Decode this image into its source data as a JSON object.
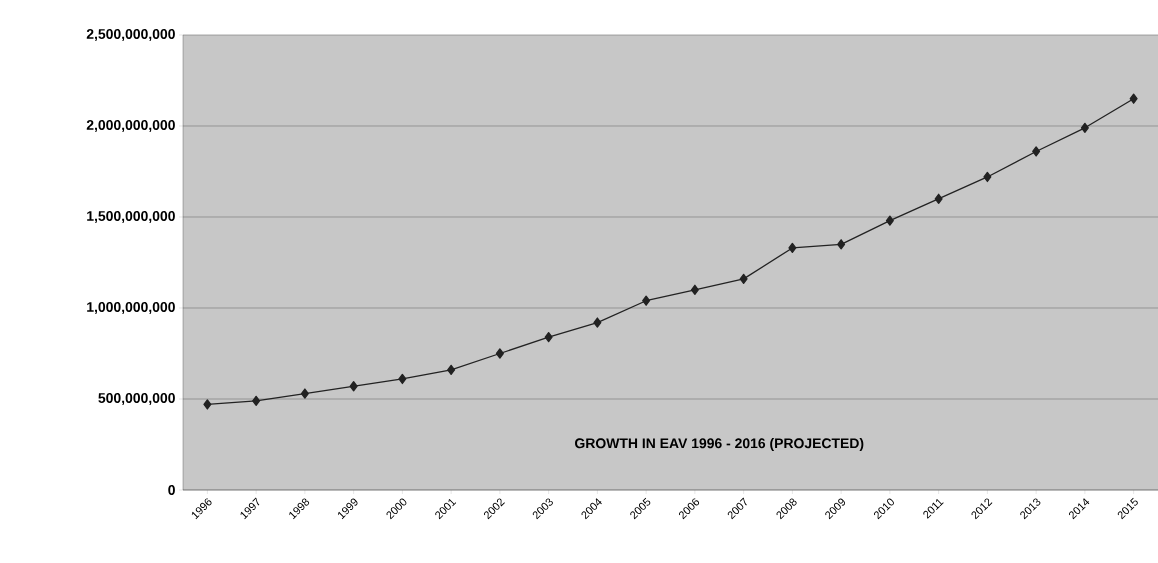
{
  "chart_data": {
    "type": "line",
    "categories": [
      "1996",
      "1997",
      "1998",
      "1999",
      "2000",
      "2001",
      "2002",
      "2003",
      "2004",
      "2005",
      "2006",
      "2007",
      "2008",
      "2009",
      "2010",
      "2011",
      "2012",
      "2013",
      "2014",
      "2015"
    ],
    "values": [
      470000000,
      490000000,
      530000000,
      570000000,
      610000000,
      660000000,
      750000000,
      840000000,
      920000000,
      1040000000,
      1100000000,
      1160000000,
      1330000000,
      1350000000,
      1480000000,
      1600000000,
      1720000000,
      1860000000,
      1990000000,
      2150000000
    ],
    "color": "#222222",
    "marker": "diamond",
    "line_style": "solid",
    "grid": "y",
    "ylim": [
      0,
      2500000000
    ],
    "yticks": [
      {
        "value": 0,
        "label": "0"
      },
      {
        "value": 500000000,
        "label": "500,000,000"
      },
      {
        "value": 1000000000,
        "label": "1,000,000,000"
      },
      {
        "value": 1500000000,
        "label": "1,500,000,000"
      },
      {
        "value": 2000000000,
        "label": "2,000,000,000"
      },
      {
        "value": 2500000000,
        "label": "2,500,000,000"
      }
    ],
    "annotations": [
      "GROWTH IN EAV 1996 - 2016 (PROJECTED)"
    ]
  }
}
